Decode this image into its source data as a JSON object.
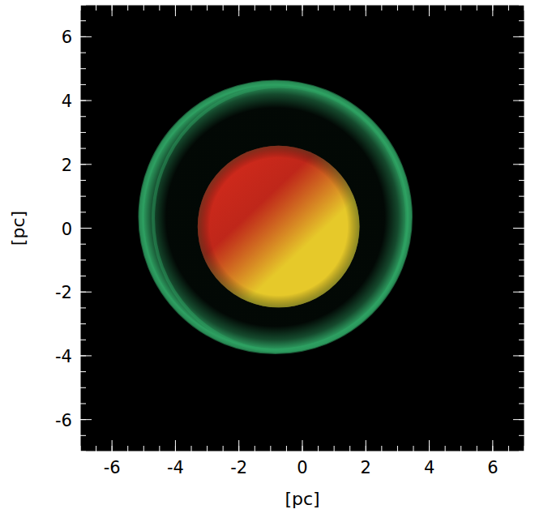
{
  "chart_data": {
    "type": "image",
    "x_label": "[pc]",
    "y_label": "[pc]",
    "xlim": [
      -7,
      7
    ],
    "ylim": [
      -7,
      7
    ],
    "xticks": [
      -6,
      -4,
      -2,
      0,
      2,
      4,
      6
    ],
    "yticks": [
      -6,
      -4,
      -2,
      0,
      2,
      4,
      6
    ],
    "shell": {
      "center_x": -0.85,
      "center_y": 0.35,
      "radius": 4.3,
      "color": "#2fa464"
    },
    "core": {
      "center_x": -0.75,
      "center_y": 0.05,
      "radius": 2.55,
      "color": "#e6c92a",
      "inner_color": "#d42a1c"
    }
  }
}
